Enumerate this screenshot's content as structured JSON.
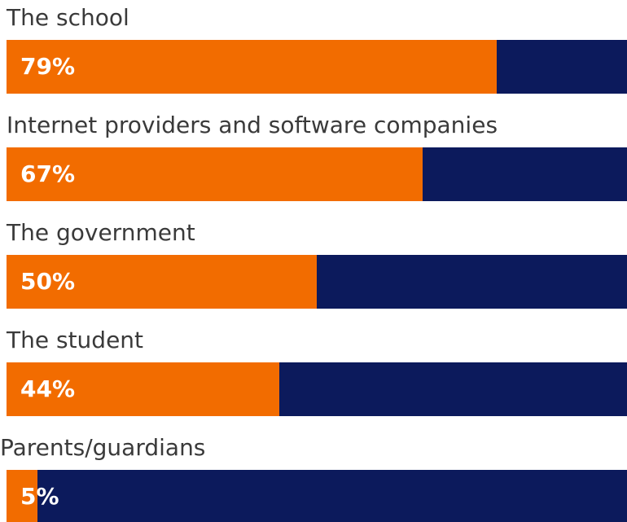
{
  "chart_data": {
    "type": "bar",
    "orientation": "horizontal",
    "stacked_to_100": true,
    "categories": [
      "The school",
      "Internet providers and software companies",
      "The government",
      "The student",
      "Parents/guardians"
    ],
    "values": [
      79,
      67,
      50,
      44,
      5
    ],
    "value_labels": [
      "79%",
      "67%",
      "50%",
      "44%",
      "5%"
    ],
    "unit": "%",
    "xlim": [
      0,
      100
    ],
    "grid": false,
    "legend": "none"
  },
  "colors": {
    "fill": "#f26c00",
    "remainder": "#0c1a5c",
    "label_text": "#3a3a3a",
    "value_text": "#ffffff"
  }
}
